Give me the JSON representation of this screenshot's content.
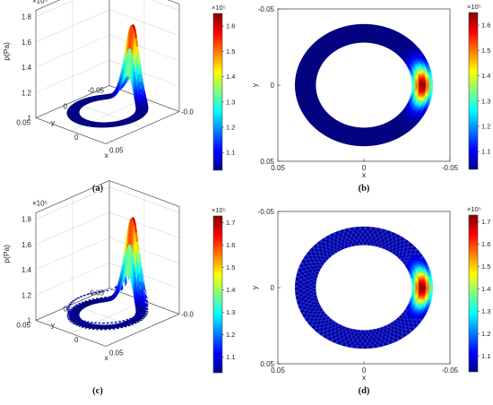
{
  "chart_data": [
    {
      "type": "surface3d",
      "panel_label": "(a)",
      "zlabel": "p(Pa)",
      "xlabel": "x",
      "ylabel": "y",
      "z_exponent_label": "×10⁵",
      "z_ticks": [
        "1",
        "1.2",
        "1.4",
        "1.6",
        "1.8"
      ],
      "x_ticks": [
        "-0.05",
        "0",
        "0.05"
      ],
      "y_ticks": [
        "-0.05",
        "0",
        "0.05"
      ],
      "x_tick_partial": "-0.0",
      "zlim": [
        1.0,
        1.85
      ],
      "ring": {
        "inner_radius": 0.028,
        "outer_radius": 0.04
      },
      "peak": {
        "x": 0.0,
        "y": -0.034,
        "value": 1.65
      },
      "base_value": 1.03,
      "textured": false,
      "colorbar": {
        "exponent_label": "×10⁵",
        "ticks": [
          "1.1",
          "1.2",
          "1.3",
          "1.4",
          "1.5",
          "1.6"
        ],
        "min": 1.03,
        "max": 1.65
      }
    },
    {
      "type": "heatmap",
      "panel_label": "(b)",
      "xlabel": "x",
      "ylabel": "y",
      "x_ticks": [
        "0.05",
        "0",
        "-0.05"
      ],
      "y_ticks": [
        "-0.05",
        "0",
        "0.05"
      ],
      "ring": {
        "inner_radius": 0.028,
        "outer_radius": 0.04
      },
      "peak": {
        "x": -0.034,
        "y": 0.0,
        "value": 1.65
      },
      "base_value": 1.03,
      "textured": false,
      "colorbar": {
        "exponent_label": "×10⁵",
        "ticks": [
          "1.1",
          "1.2",
          "1.3",
          "1.4",
          "1.5",
          "1.6"
        ],
        "min": 1.03,
        "max": 1.65
      }
    },
    {
      "type": "surface3d",
      "panel_label": "(c)",
      "zlabel": "p(Pa)",
      "xlabel": "x",
      "ylabel": "y",
      "z_exponent_label": "×10⁵",
      "z_ticks": [
        "1",
        "1.2",
        "1.4",
        "1.6",
        "1.8"
      ],
      "x_ticks": [
        "-0.05",
        "0",
        "0.05"
      ],
      "y_ticks": [
        "-0.05",
        "0",
        "0.05"
      ],
      "x_tick_partial": "-0.0",
      "zlim": [
        1.0,
        1.85
      ],
      "ring": {
        "inner_radius": 0.028,
        "outer_radius": 0.04
      },
      "peak": {
        "x": 0.0,
        "y": -0.034,
        "value": 1.73
      },
      "base_value": 1.03,
      "textured": true,
      "colorbar": {
        "exponent_label": "×10⁵",
        "ticks": [
          "1.1",
          "1.2",
          "1.3",
          "1.4",
          "1.5",
          "1.6",
          "1.7"
        ],
        "min": 1.03,
        "max": 1.73
      }
    },
    {
      "type": "heatmap",
      "panel_label": "(d)",
      "xlabel": "x",
      "ylabel": "y",
      "x_ticks": [
        "0.05",
        "0",
        "-0.05"
      ],
      "y_ticks": [
        "-0.05",
        "0",
        "0.05"
      ],
      "ring": {
        "inner_radius": 0.028,
        "outer_radius": 0.04
      },
      "peak": {
        "x": -0.034,
        "y": 0.0,
        "value": 1.73
      },
      "base_value": 1.03,
      "textured": true,
      "colorbar": {
        "exponent_label": "×10⁵",
        "ticks": [
          "1.1",
          "1.2",
          "1.3",
          "1.4",
          "1.5",
          "1.6",
          "1.7"
        ],
        "min": 1.03,
        "max": 1.73
      }
    }
  ]
}
